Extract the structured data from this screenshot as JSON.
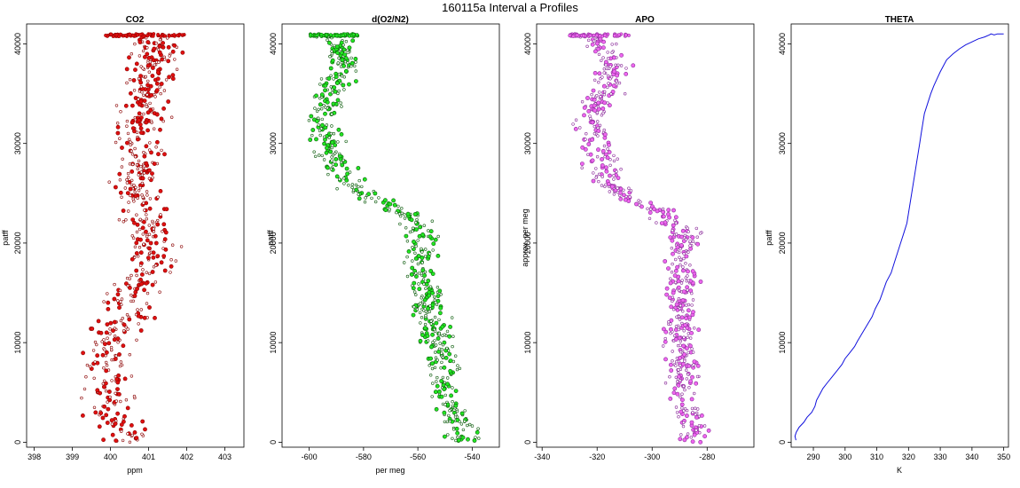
{
  "main_title": "160115a   Interval a Profiles",
  "chart_data": [
    {
      "id": "co2",
      "type": "scatter",
      "title": "CO2",
      "xlabel": "ppm",
      "ylabel": "patff",
      "xlim": [
        397.8,
        403.5
      ],
      "ylim": [
        -500,
        42000
      ],
      "xticks": [
        398,
        399,
        400,
        401,
        402,
        403
      ],
      "yticks": [
        0,
        10000,
        20000,
        30000,
        40000
      ],
      "point_fill": "#e01010",
      "point_stroke": "#8b0000",
      "profile_x": [
        [
          0,
          400.5
        ],
        [
          3000,
          400.0
        ],
        [
          6000,
          399.9
        ],
        [
          9000,
          399.8
        ],
        [
          12000,
          400.3
        ],
        [
          15000,
          400.5
        ],
        [
          18000,
          401.1
        ],
        [
          21000,
          401.0
        ],
        [
          24000,
          400.8
        ],
        [
          27000,
          400.7
        ],
        [
          30000,
          400.8
        ],
        [
          33000,
          400.9
        ],
        [
          36000,
          401.1
        ],
        [
          39000,
          401.2
        ],
        [
          41000,
          401.0
        ]
      ],
      "spread": 0.55,
      "top_band": {
        "y": 41000,
        "x0": 399.8,
        "x1": 402.0
      },
      "n_points": 620
    },
    {
      "id": "o2n2",
      "type": "scatter",
      "title": "d(O2/N2)",
      "xlabel": "per meg",
      "ylabel": "patff",
      "xlim": [
        -610,
        -530
      ],
      "ylim": [
        -500,
        42000
      ],
      "xticks": [
        -600,
        -580,
        -560,
        -540
      ],
      "yticks": [
        0,
        10000,
        20000,
        30000,
        40000
      ],
      "point_fill": "#22e622",
      "point_stroke": "#0a5a0a",
      "profile_x": [
        [
          0,
          -543
        ],
        [
          3000,
          -547
        ],
        [
          6000,
          -551
        ],
        [
          9000,
          -551
        ],
        [
          12000,
          -555
        ],
        [
          15000,
          -557
        ],
        [
          18000,
          -560
        ],
        [
          21000,
          -558
        ],
        [
          23000,
          -565
        ],
        [
          24500,
          -578
        ],
        [
          26000,
          -585
        ],
        [
          29000,
          -592
        ],
        [
          32000,
          -595
        ],
        [
          35000,
          -592
        ],
        [
          38000,
          -587
        ],
        [
          40000,
          -590
        ],
        [
          41000,
          -593
        ]
      ],
      "spread": 5,
      "top_band": {
        "y": 41000,
        "x0": -600,
        "x1": -582
      },
      "n_points": 620
    },
    {
      "id": "apo",
      "type": "scatter",
      "title": "APO",
      "xlabel": "",
      "ylabel": "approx. per meg",
      "xlim": [
        -342,
        -263
      ],
      "ylim": [
        -500,
        42000
      ],
      "xticks": [
        -340,
        -320,
        -300,
        -280
      ],
      "yticks": [
        0,
        10000,
        20000,
        30000,
        40000
      ],
      "point_fill": "#ee66ee",
      "point_stroke": "#8a2a9a",
      "profile_x": [
        [
          0,
          -284
        ],
        [
          3000,
          -287
        ],
        [
          6000,
          -289
        ],
        [
          9000,
          -289
        ],
        [
          12000,
          -290
        ],
        [
          15000,
          -289
        ],
        [
          18000,
          -289
        ],
        [
          21000,
          -289
        ],
        [
          23000,
          -296
        ],
        [
          24500,
          -308
        ],
        [
          26000,
          -316
        ],
        [
          29000,
          -320
        ],
        [
          32000,
          -322
        ],
        [
          35000,
          -318
        ],
        [
          38000,
          -314
        ],
        [
          40000,
          -318
        ],
        [
          41000,
          -324
        ]
      ],
      "spread": 5,
      "top_band": {
        "y": 41000,
        "x0": -330,
        "x1": -308
      },
      "n_points": 620
    },
    {
      "id": "theta",
      "type": "line",
      "title": "THETA",
      "xlabel": "K",
      "ylabel": "patff",
      "xlim": [
        283,
        351.5
      ],
      "ylim": [
        -500,
        42000
      ],
      "xticks": [
        290,
        300,
        310,
        320,
        330,
        340,
        350
      ],
      "yticks": [
        0,
        10000,
        20000,
        30000,
        40000
      ],
      "line_color": "#1010dd",
      "x": [
        284.5,
        284.2,
        284.6,
        285.5,
        287,
        288,
        289.5,
        290.5,
        291,
        292,
        293,
        294.5,
        296,
        297.5,
        299,
        300,
        301.5,
        303,
        304,
        305.5,
        307,
        308.5,
        309.5,
        311,
        312,
        313,
        314.5,
        315.5,
        316.5,
        317.5,
        318.5,
        319.5,
        320,
        320.5,
        321,
        321.5,
        322,
        322.5,
        323,
        323.5,
        324,
        324.5,
        325,
        326,
        327,
        328,
        329,
        330,
        331,
        332,
        334,
        336,
        338,
        340,
        342,
        344,
        345.5,
        346,
        347,
        348,
        350
      ],
      "y": [
        200,
        600,
        1000,
        1500,
        2000,
        2500,
        3000,
        3600,
        4200,
        4800,
        5400,
        6000,
        6600,
        7200,
        7800,
        8400,
        9000,
        9600,
        10200,
        11000,
        11800,
        12600,
        13400,
        14300,
        15200,
        16100,
        17000,
        18000,
        19000,
        20000,
        21000,
        22000,
        23000,
        24000,
        25000,
        26000,
        27000,
        28000,
        29000,
        30000,
        31000,
        32000,
        33000,
        34000,
        35000,
        35800,
        36500,
        37200,
        37800,
        38400,
        39000,
        39500,
        39900,
        40200,
        40500,
        40700,
        40900,
        41000,
        40900,
        41000,
        41000
      ]
    }
  ]
}
